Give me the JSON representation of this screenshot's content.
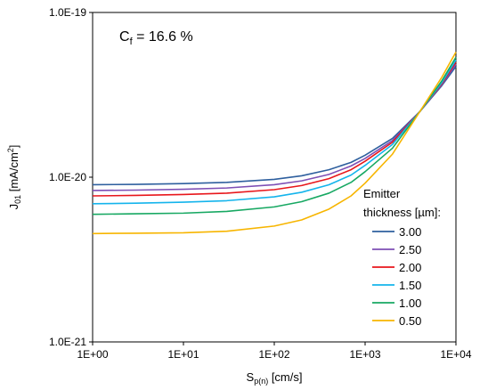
{
  "chart_data": {
    "type": "line",
    "annotation": {
      "base": "C",
      "sub": "f",
      "rest": " = 16.6 %"
    },
    "xlabel": {
      "base": "S",
      "sub": "p(n)",
      "rest": " [cm/s]"
    },
    "ylabel": {
      "base": "J",
      "sub": "01",
      "mid": " [mA/cm",
      "sup": "2",
      "rest": "]"
    },
    "x_scale": "log",
    "y_scale": "log",
    "xlim": [
      1,
      10000
    ],
    "ylim": [
      1e-21,
      1e-19
    ],
    "x_ticks": [
      1,
      10,
      100,
      1000,
      10000
    ],
    "x_tick_labels": [
      "1E+00",
      "1E+01",
      "1E+02",
      "1E+03",
      "1E+04"
    ],
    "y_ticks": [
      1e-21,
      1e-20,
      1e-19
    ],
    "y_tick_labels": [
      "1.0E-21",
      "1.0E-20",
      "1.0E-19"
    ],
    "grid": false,
    "legend": {
      "title_line1": "Emitter",
      "title_line2": "thickness [µm]:",
      "placement": "right-middle"
    },
    "series": [
      {
        "name": "3.00",
        "color": "#2e5f9e",
        "x": [
          1,
          3,
          10,
          30,
          100,
          200,
          400,
          700,
          1000,
          2000,
          4000,
          7000,
          10000
        ],
        "y": [
          9e-21,
          9.05e-21,
          9.15e-21,
          9.3e-21,
          9.7e-21,
          1.02e-20,
          1.11e-20,
          1.23e-20,
          1.36e-20,
          1.72e-20,
          2.5e-20,
          3.6e-20,
          4.7e-20
        ]
      },
      {
        "name": "2.50",
        "color": "#7e4fb5",
        "x": [
          1,
          3,
          10,
          30,
          100,
          200,
          400,
          700,
          1000,
          2000,
          4000,
          7000,
          10000
        ],
        "y": [
          8.3e-21,
          8.35e-21,
          8.45e-21,
          8.6e-21,
          9e-21,
          9.5e-21,
          1.04e-20,
          1.17e-20,
          1.3e-20,
          1.67e-20,
          2.5e-20,
          3.65e-20,
          4.85e-20
        ]
      },
      {
        "name": "2.00",
        "color": "#e8161b",
        "x": [
          1,
          3,
          10,
          30,
          100,
          200,
          400,
          700,
          1000,
          2000,
          4000,
          7000,
          10000
        ],
        "y": [
          7.7e-21,
          7.75e-21,
          7.85e-21,
          8e-21,
          8.4e-21,
          8.9e-21,
          9.8e-21,
          1.11e-20,
          1.25e-20,
          1.63e-20,
          2.5e-20,
          3.7e-20,
          5e-20
        ]
      },
      {
        "name": "1.50",
        "color": "#14b4ec",
        "x": [
          1,
          3,
          10,
          30,
          100,
          200,
          400,
          700,
          1000,
          2000,
          4000,
          7000,
          10000
        ],
        "y": [
          6.9e-21,
          6.95e-21,
          7.05e-21,
          7.2e-21,
          7.6e-21,
          8.1e-21,
          9e-21,
          1.03e-20,
          1.18e-20,
          1.58e-20,
          2.5e-20,
          3.75e-20,
          5.15e-20
        ]
      },
      {
        "name": "1.00",
        "color": "#17a862",
        "x": [
          1,
          3,
          10,
          30,
          100,
          200,
          400,
          700,
          1000,
          2000,
          4000,
          7000,
          10000
        ],
        "y": [
          5.95e-21,
          6e-21,
          6.05e-21,
          6.2e-21,
          6.6e-21,
          7.1e-21,
          8e-21,
          9.3e-21,
          1.08e-20,
          1.5e-20,
          2.5e-20,
          3.85e-20,
          5.35e-20
        ]
      },
      {
        "name": "0.50",
        "color": "#f7b500",
        "x": [
          1,
          3,
          10,
          30,
          100,
          200,
          400,
          700,
          1000,
          2000,
          4000,
          7000,
          10000
        ],
        "y": [
          4.55e-21,
          4.57e-21,
          4.6e-21,
          4.7e-21,
          5.05e-21,
          5.5e-21,
          6.4e-21,
          7.7e-21,
          9.2e-21,
          1.38e-20,
          2.5e-20,
          4.05e-20,
          5.75e-20
        ]
      }
    ]
  }
}
